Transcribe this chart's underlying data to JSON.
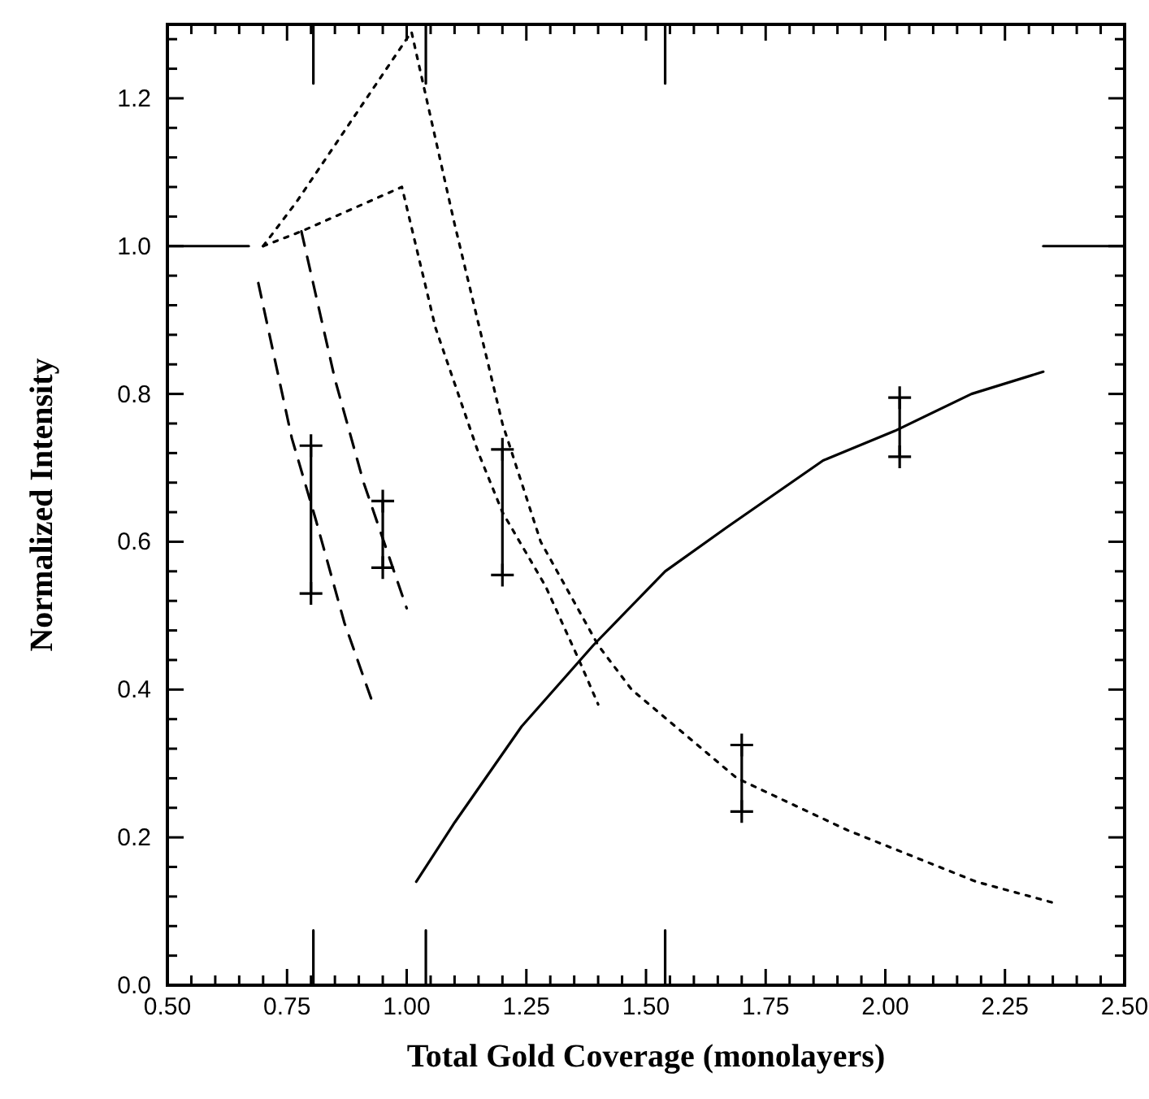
{
  "chart_data": {
    "type": "line",
    "xlabel": "Total Gold Coverage (monolayers)",
    "ylabel": "Normalized Intensity",
    "xlim": [
      0.5,
      2.5
    ],
    "ylim": [
      0,
      1.3
    ],
    "xticks": [
      {
        "value": 0.5,
        "label": "0.50"
      },
      {
        "value": 0.55,
        "label": null
      },
      {
        "value": 0.6,
        "label": null
      },
      {
        "value": 0.65,
        "label": null
      },
      {
        "value": 0.7,
        "label": null
      },
      {
        "value": 0.75,
        "label": "0.75"
      },
      {
        "value": 0.8,
        "label": null
      },
      {
        "value": 0.85,
        "label": null
      },
      {
        "value": 0.9,
        "label": null
      },
      {
        "value": 0.95,
        "label": null
      },
      {
        "value": 1.0,
        "label": "1.00"
      },
      {
        "value": 1.05,
        "label": null
      },
      {
        "value": 1.1,
        "label": null
      },
      {
        "value": 1.15,
        "label": null
      },
      {
        "value": 1.2,
        "label": null
      },
      {
        "value": 1.25,
        "label": "1.25"
      },
      {
        "value": 1.3,
        "label": null
      },
      {
        "value": 1.35,
        "label": null
      },
      {
        "value": 1.4,
        "label": null
      },
      {
        "value": 1.45,
        "label": null
      },
      {
        "value": 1.5,
        "label": "1.50"
      },
      {
        "value": 1.55,
        "label": null
      },
      {
        "value": 1.6,
        "label": null
      },
      {
        "value": 1.65,
        "label": null
      },
      {
        "value": 1.7,
        "label": null
      },
      {
        "value": 1.75,
        "label": "1.75"
      },
      {
        "value": 1.8,
        "label": null
      },
      {
        "value": 1.85,
        "label": null
      },
      {
        "value": 1.9,
        "label": null
      },
      {
        "value": 1.95,
        "label": null
      },
      {
        "value": 2.0,
        "label": "2.00"
      },
      {
        "value": 2.05,
        "label": null
      },
      {
        "value": 2.1,
        "label": null
      },
      {
        "value": 2.15,
        "label": null
      },
      {
        "value": 2.2,
        "label": null
      },
      {
        "value": 2.25,
        "label": "2.25"
      },
      {
        "value": 2.3,
        "label": null
      },
      {
        "value": 2.35,
        "label": null
      },
      {
        "value": 2.4,
        "label": null
      },
      {
        "value": 2.45,
        "label": null
      },
      {
        "value": 2.5,
        "label": "2.50"
      }
    ],
    "yticks": [
      {
        "value": 0,
        "label": "0.0"
      },
      {
        "value": 0.04,
        "label": null
      },
      {
        "value": 0.08,
        "label": null
      },
      {
        "value": 0.12,
        "label": null
      },
      {
        "value": 0.16,
        "label": null
      },
      {
        "value": 0.2,
        "label": "0.2"
      },
      {
        "value": 0.24,
        "label": null
      },
      {
        "value": 0.28,
        "label": null
      },
      {
        "value": 0.32,
        "label": null
      },
      {
        "value": 0.36,
        "label": null
      },
      {
        "value": 0.4,
        "label": "0.4"
      },
      {
        "value": 0.44,
        "label": null
      },
      {
        "value": 0.48,
        "label": null
      },
      {
        "value": 0.52,
        "label": null
      },
      {
        "value": 0.56,
        "label": null
      },
      {
        "value": 0.6,
        "label": "0.6"
      },
      {
        "value": 0.64,
        "label": null
      },
      {
        "value": 0.68,
        "label": null
      },
      {
        "value": 0.72,
        "label": null
      },
      {
        "value": 0.76,
        "label": null
      },
      {
        "value": 0.8,
        "label": "0.8"
      },
      {
        "value": 0.84,
        "label": null
      },
      {
        "value": 0.88,
        "label": null
      },
      {
        "value": 0.92,
        "label": null
      },
      {
        "value": 0.96,
        "label": null
      },
      {
        "value": 1.0,
        "label": "1.0"
      },
      {
        "value": 1.04,
        "label": null
      },
      {
        "value": 1.08,
        "label": null
      },
      {
        "value": 1.12,
        "label": null
      },
      {
        "value": 1.16,
        "label": null
      },
      {
        "value": 1.2,
        "label": "1.2"
      },
      {
        "value": 1.24,
        "label": null
      },
      {
        "value": 1.28,
        "label": null
      }
    ],
    "series": [
      {
        "color": "#000000",
        "line_style": "solid",
        "x": [
          1.02,
          1.1,
          1.24,
          1.39,
          1.54,
          1.67,
          1.87,
          2.02,
          2.18,
          2.33
        ],
        "values": [
          0.14,
          0.22,
          0.35,
          0.46,
          0.56,
          0.62,
          0.71,
          0.75,
          0.8,
          0.83
        ]
      },
      {
        "color": "#000000",
        "line_style": "dotted",
        "x": [
          0.7,
          0.77,
          1.01,
          1.1,
          1.2,
          1.28,
          1.4,
          1.47,
          1.69,
          1.92,
          2.19,
          2.36
        ],
        "values": [
          1.0,
          1.06,
          1.29,
          1.03,
          0.76,
          0.6,
          0.46,
          0.4,
          0.28,
          0.21,
          0.14,
          0.11
        ]
      },
      {
        "color": "#000000",
        "line_style": "dotted",
        "x": [
          0.7,
          0.78,
          0.99,
          1.06,
          1.15,
          1.2,
          1.29,
          1.36,
          1.4
        ],
        "values": [
          1.0,
          1.02,
          1.08,
          0.89,
          0.72,
          0.64,
          0.54,
          0.44,
          0.38
        ]
      },
      {
        "color": "#000000",
        "line_style": "dashed",
        "x": [
          0.69,
          0.76,
          0.81,
          0.87,
          0.93
        ],
        "values": [
          0.95,
          0.74,
          0.63,
          0.49,
          0.38
        ]
      },
      {
        "color": "#000000",
        "line_style": "dashed",
        "x": [
          0.78,
          0.85,
          0.91,
          1.0
        ],
        "values": [
          1.02,
          0.82,
          0.68,
          0.51
        ]
      },
      {
        "color": "#000000",
        "line_style": "solid",
        "marker": "cross",
        "x": [
          0.8,
          0.8
        ],
        "values": [
          0.73,
          0.53
        ]
      },
      {
        "color": "#000000",
        "line_style": "solid",
        "marker": "cross",
        "x": [
          0.95,
          0.95
        ],
        "values": [
          0.655,
          0.565
        ]
      },
      {
        "color": "#000000",
        "line_style": "solid",
        "marker": "cross",
        "x": [
          1.2,
          1.2
        ],
        "values": [
          0.725,
          0.555
        ]
      },
      {
        "color": "#000000",
        "line_style": "solid",
        "marker": "cross",
        "x": [
          1.7,
          1.7
        ],
        "values": [
          0.325,
          0.235
        ]
      },
      {
        "color": "#000000",
        "line_style": "solid",
        "marker": "cross",
        "x": [
          2.03,
          2.03
        ],
        "values": [
          0.795,
          0.715
        ]
      },
      {
        "color": "#000000",
        "line_style": "solid",
        "x": [
          0.5,
          0.67
        ],
        "values": [
          1.0,
          1.0
        ]
      },
      {
        "color": "#000000",
        "line_style": "solid",
        "x": [
          2.33,
          2.5
        ],
        "values": [
          1.0,
          1.0
        ]
      },
      {
        "color": "#000000",
        "line_style": "solid",
        "x": [
          0.805,
          0.805
        ],
        "values": [
          0,
          0.074
        ]
      },
      {
        "color": "#000000",
        "line_style": "solid",
        "x": [
          1.04,
          1.04
        ],
        "values": [
          0,
          0.074
        ]
      },
      {
        "color": "#000000",
        "line_style": "solid",
        "x": [
          1.54,
          1.54
        ],
        "values": [
          0,
          0.074
        ]
      },
      {
        "color": "#000000",
        "line_style": "solid",
        "x": [
          0.805,
          0.805
        ],
        "values": [
          1.3,
          1.22
        ]
      },
      {
        "color": "#000000",
        "line_style": "solid",
        "x": [
          1.04,
          1.04
        ],
        "values": [
          1.3,
          1.22
        ]
      },
      {
        "color": "#000000",
        "line_style": "solid",
        "x": [
          1.54,
          1.54
        ],
        "values": [
          1.3,
          1.22
        ]
      }
    ]
  }
}
